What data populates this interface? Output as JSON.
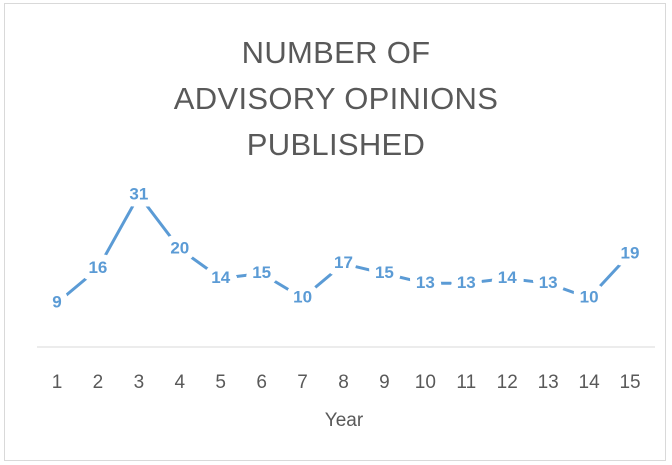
{
  "chart_data": {
    "type": "line",
    "title": "NUMBER OF ADVISORY OPINIONS PUBLISHED",
    "x_label": "Year",
    "categories": [
      "1",
      "2",
      "3",
      "4",
      "5",
      "6",
      "7",
      "8",
      "9",
      "10",
      "11",
      "12",
      "13",
      "14",
      "15"
    ],
    "series": [
      {
        "name": "Advisory opinions",
        "color": "#5b9bd5",
        "values": [
          9,
          16,
          31,
          20,
          14,
          15,
          10,
          17,
          15,
          13,
          13,
          14,
          13,
          10,
          19
        ]
      }
    ],
    "ylim": [
      0,
      40
    ],
    "data_labels": true
  }
}
